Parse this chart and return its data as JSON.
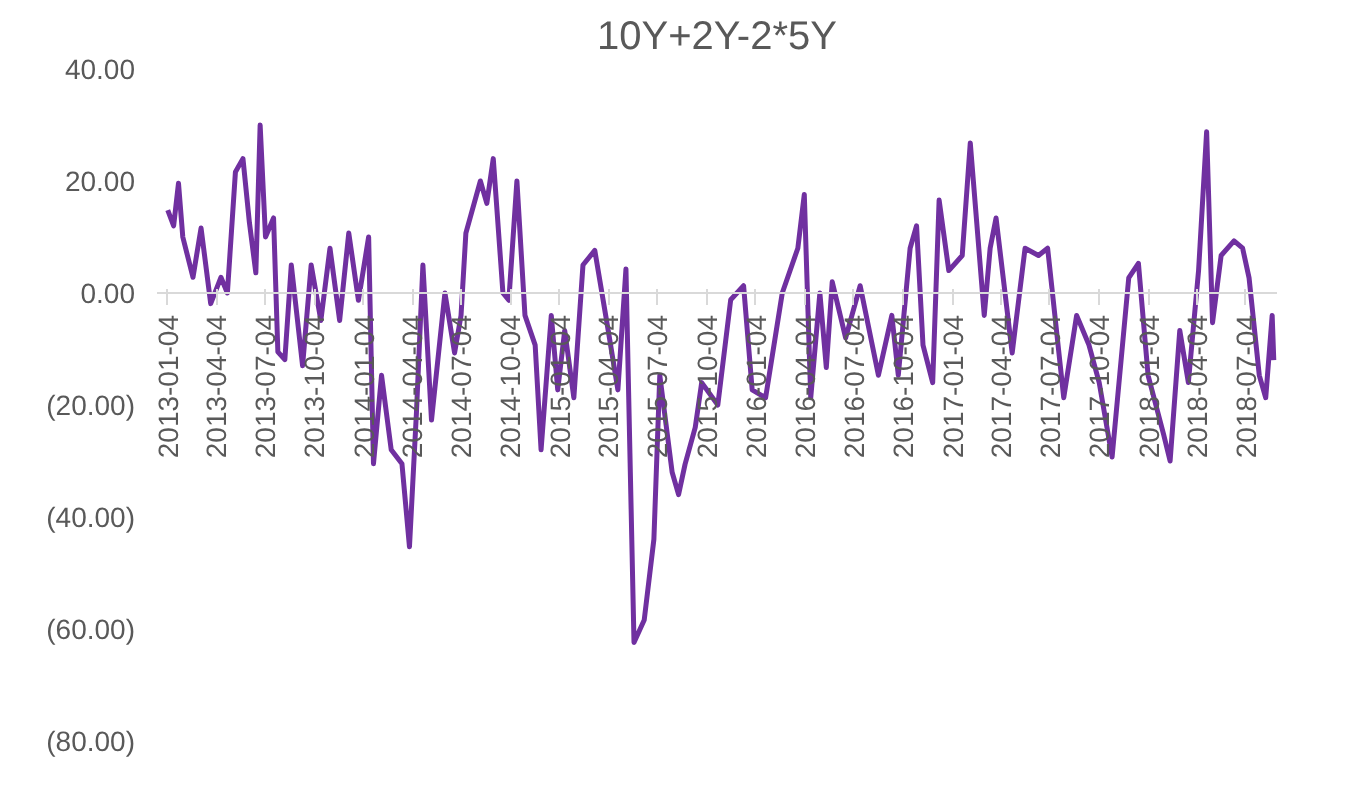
{
  "chart_data": {
    "type": "line",
    "title": "10Y+2Y-2*5Y",
    "x": [
      "2013-01-04",
      "2013-01-15",
      "2013-01-24",
      "2013-02-01",
      "2013-02-20",
      "2013-03-07",
      "2013-03-25",
      "2013-04-13",
      "2013-04-25",
      "2013-05-10",
      "2013-05-24",
      "2013-06-05",
      "2013-06-17",
      "2013-06-25",
      "2013-07-05",
      "2013-07-20",
      "2013-07-28",
      "2013-08-10",
      "2013-08-22",
      "2013-09-12",
      "2013-09-28",
      "2013-10-16",
      "2013-11-02",
      "2013-11-20",
      "2013-12-07",
      "2013-12-25",
      "2014-01-13",
      "2014-01-22",
      "2014-02-06",
      "2014-02-24",
      "2014-03-16",
      "2014-03-30",
      "2014-04-12",
      "2014-04-24",
      "2014-05-10",
      "2014-06-04",
      "2014-06-22",
      "2014-07-04",
      "2014-07-13",
      "2014-08-09",
      "2014-08-21",
      "2014-09-02",
      "2014-09-20",
      "2014-10-01",
      "2014-10-16",
      "2014-10-31",
      "2014-11-19",
      "2014-11-30",
      "2014-12-19",
      "2014-12-31",
      "2015-01-13",
      "2015-01-30",
      "2015-02-16",
      "2015-03-10",
      "2015-04-04",
      "2015-04-22",
      "2015-05-07",
      "2015-05-22",
      "2015-06-10",
      "2015-06-28",
      "2015-07-09",
      "2015-08-01",
      "2015-08-13",
      "2015-08-25",
      "2015-09-13",
      "2015-09-25",
      "2015-10-25",
      "2015-11-18",
      "2015-12-12",
      "2015-12-28",
      "2016-01-22",
      "2016-02-22",
      "2016-03-22",
      "2016-04-03",
      "2016-04-15",
      "2016-05-02",
      "2016-05-14",
      "2016-05-25",
      "2016-06-19",
      "2016-07-16",
      "2016-08-19",
      "2016-09-13",
      "2016-09-25",
      "2016-10-17",
      "2016-10-29",
      "2016-11-10",
      "2016-11-28",
      "2016-12-10",
      "2016-12-28",
      "2017-01-22",
      "2017-02-06",
      "2017-03-04",
      "2017-03-15",
      "2017-03-26",
      "2017-04-25",
      "2017-05-19",
      "2017-06-13",
      "2017-06-30",
      "2017-07-30",
      "2017-08-23",
      "2017-09-15",
      "2017-10-04",
      "2017-10-28",
      "2017-11-28",
      "2017-12-16",
      "2018-01-03",
      "2018-02-01",
      "2018-02-13",
      "2018-03-03",
      "2018-03-19",
      "2018-04-07",
      "2018-04-22",
      "2018-05-03",
      "2018-05-19",
      "2018-06-12",
      "2018-06-28",
      "2018-07-10",
      "2018-07-29",
      "2018-08-10",
      "2018-08-22",
      "2018-08-25"
    ],
    "series": [
      {
        "color": "#7030a0",
        "values": [
          14.8,
          12,
          19.6,
          10,
          2.8,
          11.6,
          -1.9,
          2.8,
          0,
          21.6,
          24,
          12.6,
          3.6,
          30,
          10,
          13.4,
          -10.5,
          -11.9,
          5,
          -13,
          5,
          -4.9,
          8,
          -4.9,
          10.7,
          -1.3,
          10,
          -30.5,
          -14.7,
          -28,
          -30.5,
          -45.3,
          -21.3,
          5,
          -22.7,
          0,
          -10.7,
          -4,
          10.7,
          20,
          16,
          24,
          0,
          -1.3,
          20,
          -4,
          -9.3,
          -28,
          -4,
          -17.3,
          -6.7,
          -18.7,
          5,
          7.6,
          -6.7,
          -17.3,
          4.3,
          -62.4,
          -58.4,
          -44,
          -14.7,
          -32,
          -36,
          -30.6,
          -24,
          -16,
          -20,
          -1.2,
          1.3,
          -17.3,
          -18.7,
          0,
          8,
          17.6,
          -18.7,
          0,
          -13.3,
          2,
          -8,
          1.3,
          -14.7,
          -4,
          -14.7,
          8,
          12,
          -9.3,
          -16,
          16.6,
          4,
          6.7,
          26.8,
          -4,
          8,
          13.4,
          -10.7,
          8,
          6.7,
          8,
          -18.7,
          -4,
          -9.3,
          -16,
          -29.3,
          2.7,
          5.3,
          -14.7,
          -25.3,
          -30,
          -6.7,
          -16,
          4,
          28.8,
          -5.3,
          6.7,
          9.3,
          8,
          2.7,
          -14.7,
          -18.7,
          -4,
          -12
        ]
      }
    ],
    "xlim": [
      "2012-12-15",
      "2018-08-31"
    ],
    "xticks": [
      "2013-01-04",
      "2013-04-04",
      "2013-07-04",
      "2013-10-04",
      "2014-01-04",
      "2014-04-04",
      "2014-07-04",
      "2014-10-04",
      "2015-01-04",
      "2015-04-04",
      "2015-07-04",
      "2015-10-04",
      "2016-01-04",
      "2016-04-04",
      "2016-07-04",
      "2016-10-04",
      "2017-01-04",
      "2017-04-04",
      "2017-07-04",
      "2017-10-04",
      "2018-01-04",
      "2018-04-04",
      "2018-07-04"
    ],
    "ylim": [
      -80,
      40
    ],
    "yticks": [
      {
        "value": 40,
        "label": "40.00"
      },
      {
        "value": 20,
        "label": "20.00"
      },
      {
        "value": 0,
        "label": "0.00"
      },
      {
        "value": -20,
        "label": "(20.00)"
      },
      {
        "value": -40,
        "label": "(40.00)"
      },
      {
        "value": -60,
        "label": "(60.00)"
      },
      {
        "value": -80,
        "label": "(80.00)"
      }
    ],
    "grid": false,
    "marker": "none",
    "line_style": "solid"
  }
}
